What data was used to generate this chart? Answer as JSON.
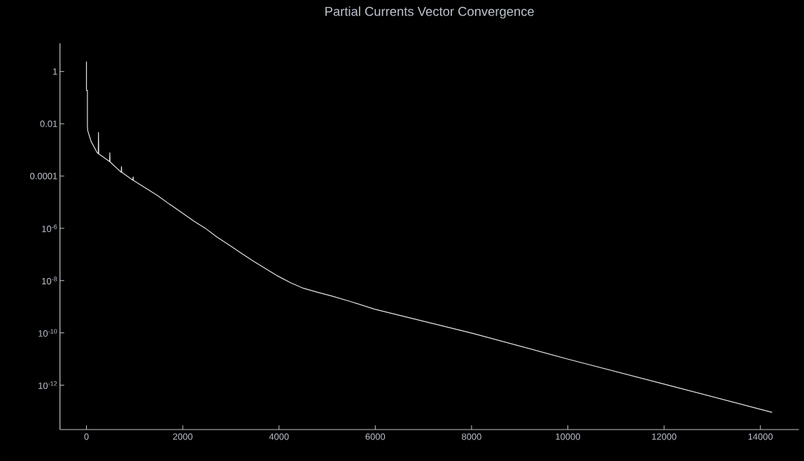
{
  "chart_data": {
    "type": "line",
    "title": "Partial Currents Vector Convergence",
    "x": [
      0,
      0,
      20,
      20,
      25,
      97,
      218,
      245,
      250,
      255,
      480,
      485,
      490,
      722,
      727,
      732,
      965,
      970,
      975,
      1235,
      1478,
      1721,
      1962,
      2230,
      2471,
      2714,
      2980,
      3222,
      3465,
      3731,
      3974,
      4240,
      4506,
      4797,
      5087,
      5475,
      5984,
      7988,
      9993,
      11998,
      14244
    ],
    "series": [
      {
        "color": "#e6e6e6",
        "values": [
          2.4,
          0.19,
          0.19,
          0.0085,
          0.0056,
          0.0021,
          0.00081,
          0.00072,
          0.0047,
          0.00071,
          0.00036,
          0.00078,
          0.00035,
          0.00014,
          0.00023,
          0.00014,
          6.9e-05,
          9.3e-05,
          6.8e-05,
          3.4e-05,
          1.8e-05,
          8.5e-06,
          4.2e-06,
          1.9e-06,
          1e-06,
          4.6e-07,
          2.2e-07,
          1.1e-07,
          5.6e-08,
          2.8e-08,
          1.5e-08,
          8.3e-09,
          5.1e-09,
          3.6e-09,
          2.6e-09,
          1.6e-09,
          8.1e-10,
          1e-10,
          1e-11,
          1.1e-12,
          9.1e-14
        ]
      }
    ],
    "xlim": [
      -550,
      14800
    ],
    "ylim": [
      2e-14,
      12
    ],
    "xticks": [
      0,
      2000,
      4000,
      6000,
      8000,
      10000,
      12000,
      14000
    ],
    "yticks": [
      1,
      0.01,
      0.0001,
      {
        "value": 1e-06,
        "label": "10$^{-6}$"
      },
      {
        "value": 1e-08,
        "label": "10$^{-8}$"
      },
      {
        "value": 1e-10,
        "label": "10$^{-10}$"
      },
      {
        "value": 1e-12,
        "label": "10$^{-12}$"
      }
    ],
    "log": "y",
    "marker": "none",
    "line_style": "solid"
  }
}
